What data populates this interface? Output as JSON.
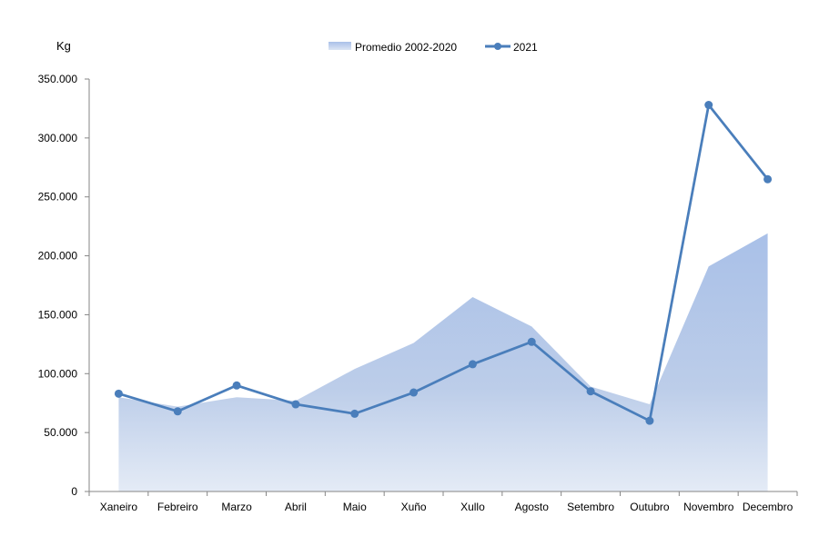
{
  "chart_data": {
    "type": "line",
    "y_unit_label": "Kg",
    "categories": [
      "Xaneiro",
      "Febreiro",
      "Marzo",
      "Abril",
      "Maio",
      "Xuño",
      "Xullo",
      "Agosto",
      "Setembro",
      "Outubro",
      "Novembro",
      "Decembro"
    ],
    "series": [
      {
        "name": "Promedio 2002-2020",
        "kind": "area",
        "color": "#b4c7e7",
        "values": [
          80000,
          72000,
          80000,
          77000,
          104000,
          126000,
          165000,
          140000,
          89000,
          74000,
          191000,
          219000
        ]
      },
      {
        "name": "2021",
        "kind": "line-markers",
        "color": "#4a7ebb",
        "values": [
          83000,
          68000,
          90000,
          74000,
          66000,
          84000,
          108000,
          127000,
          85000,
          60000,
          328000,
          265000
        ]
      }
    ],
    "ylim": [
      0,
      350000
    ],
    "yticks": [
      0,
      50000,
      100000,
      150000,
      200000,
      250000,
      300000,
      350000
    ],
    "ytick_labels": [
      "0",
      "50.000",
      "100.000",
      "150.000",
      "200.000",
      "250.000",
      "300.000",
      "350.000"
    ],
    "legend_position": "top-center",
    "grid": false
  }
}
